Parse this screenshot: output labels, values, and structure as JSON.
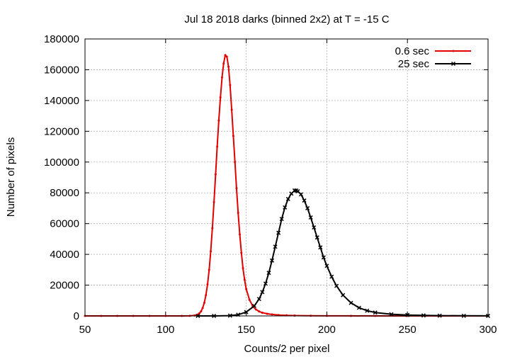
{
  "chart_data": {
    "type": "line",
    "title": "Jul 18 2018 darks (binned 2x2) at T = -15 C",
    "xlabel": "Counts/2 per pixel",
    "ylabel": "Number of pixels",
    "xlim": [
      50,
      300
    ],
    "ylim": [
      0,
      180000
    ],
    "xticks": [
      50,
      100,
      150,
      200,
      250,
      300
    ],
    "yticks": [
      0,
      20000,
      40000,
      60000,
      80000,
      100000,
      120000,
      140000,
      160000,
      180000
    ],
    "grid": true,
    "legend_position": "top-right",
    "series": [
      {
        "name": "0.6 sec",
        "color": "#e00000",
        "marker": "dot",
        "x": [
          50,
          60,
          70,
          80,
          90,
          100,
          110,
          115,
          118,
          120,
          121,
          122,
          123,
          124,
          125,
          126,
          127,
          128,
          129,
          130,
          131,
          132,
          133,
          134,
          135,
          136,
          137,
          138,
          139,
          140,
          141,
          142,
          143,
          144,
          145,
          146,
          147,
          148,
          149,
          150,
          152,
          154,
          156,
          158,
          160,
          163,
          166,
          170,
          175,
          180,
          190,
          200,
          215,
          230,
          250,
          270,
          300
        ],
        "y": [
          0,
          0,
          0,
          0,
          0,
          0,
          0,
          50,
          300,
          900,
          1700,
          3000,
          5200,
          8500,
          13500,
          20500,
          30000,
          42000,
          57000,
          74000,
          92000,
          110000,
          127000,
          142000,
          155000,
          164000,
          169500,
          168500,
          162000,
          150000,
          134000,
          117000,
          100000,
          83000,
          67000,
          53000,
          41000,
          31000,
          23500,
          17500,
          10500,
          6500,
          4200,
          2900,
          2100,
          1400,
          950,
          600,
          380,
          250,
          120,
          60,
          25,
          10,
          5,
          2,
          0
        ]
      },
      {
        "name": "25 sec",
        "color": "#000000",
        "marker": "x",
        "x": [
          120,
          130,
          140,
          145,
          150,
          155,
          158,
          160,
          162,
          164,
          166,
          168,
          170,
          172,
          174,
          176,
          178,
          180,
          181,
          182,
          184,
          186,
          188,
          190,
          192,
          194,
          196,
          198,
          200,
          203,
          206,
          210,
          215,
          220,
          225,
          230,
          240,
          250,
          260,
          270,
          285,
          300
        ],
        "y": [
          0,
          0,
          200,
          800,
          2500,
          6500,
          11000,
          15500,
          21000,
          28000,
          36000,
          45000,
          54000,
          63000,
          70500,
          76000,
          79500,
          81500,
          81500,
          81000,
          79000,
          75000,
          70000,
          64000,
          57500,
          51000,
          44500,
          38000,
          32500,
          25500,
          19500,
          13500,
          8500,
          5300,
          3400,
          2200,
          1100,
          600,
          330,
          180,
          70,
          30
        ]
      }
    ]
  }
}
